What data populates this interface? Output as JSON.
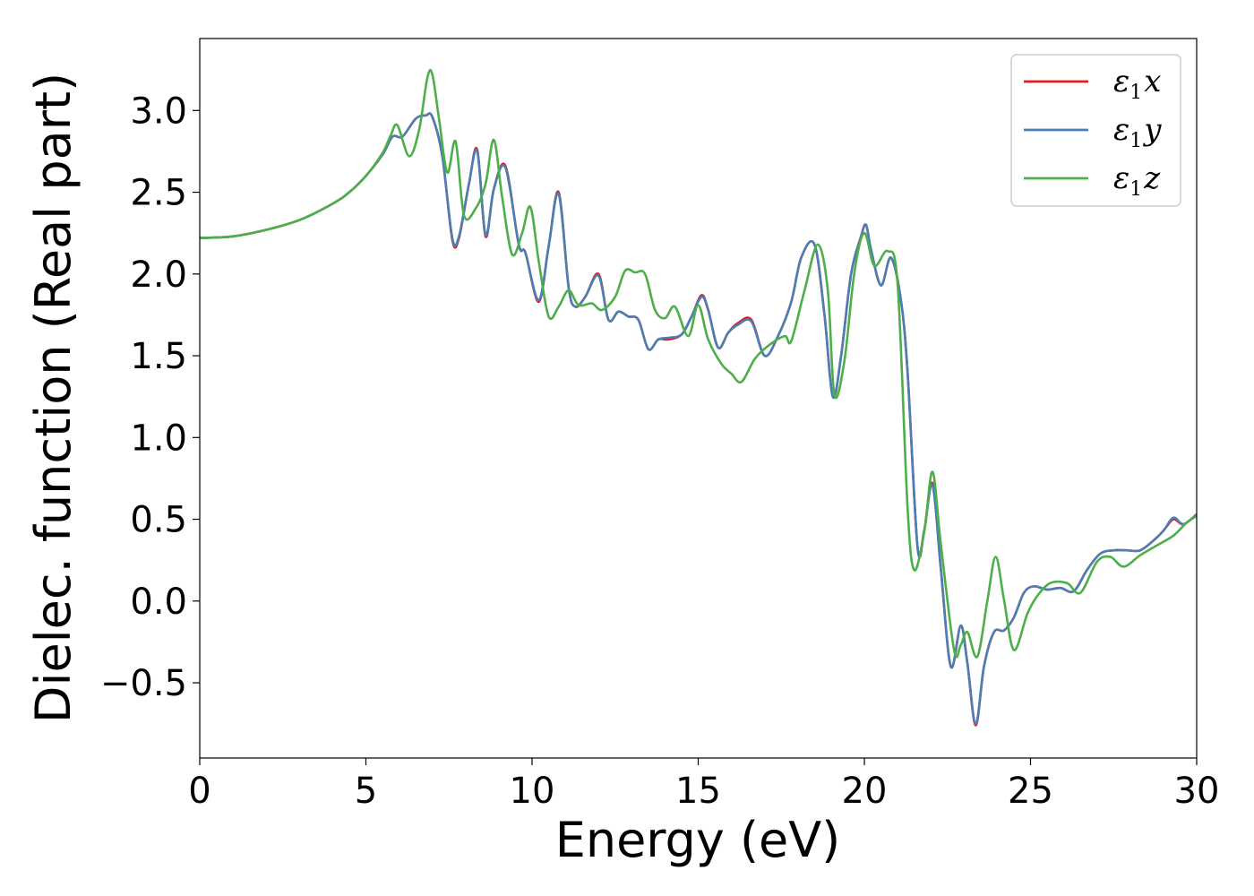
{
  "chart_data": {
    "type": "line",
    "title": "",
    "xlabel": "Energy (eV)",
    "ylabel": "Dielec. function (Real part)",
    "xlim": [
      0,
      30
    ],
    "ylim": [
      -0.96,
      3.44
    ],
    "xticks": [
      0,
      5,
      10,
      15,
      20,
      25,
      30
    ],
    "xtick_labels": [
      "0",
      "5",
      "10",
      "15",
      "20",
      "25",
      "30"
    ],
    "yticks": [
      -0.5,
      0.0,
      0.5,
      1.0,
      1.5,
      2.0,
      2.5,
      3.0
    ],
    "ytick_labels": [
      "−0.5",
      "0.0",
      "0.5",
      "1.0",
      "1.5",
      "2.0",
      "2.5",
      "3.0"
    ],
    "grid": false,
    "legend_position": "top-right",
    "series": [
      {
        "name": "ε1x",
        "legend_base": "ε",
        "legend_sub": "1",
        "legend_var": "x",
        "color": "#e41a1c",
        "x": [
          0,
          1,
          2,
          3,
          4,
          4.5,
          5,
          5.5,
          5.8,
          6.1,
          6.5,
          6.8,
          7.0,
          7.3,
          7.6,
          7.8,
          8.1,
          8.35,
          8.6,
          8.85,
          9.2,
          9.6,
          9.8,
          10.2,
          10.5,
          10.8,
          11.1,
          11.3,
          11.6,
          12.0,
          12.3,
          12.6,
          12.9,
          13.2,
          13.5,
          13.8,
          14.1,
          14.5,
          14.8,
          15.1,
          15.3,
          15.6,
          15.9,
          16.2,
          16.6,
          17.0,
          17.4,
          17.8,
          18.1,
          18.5,
          18.8,
          19.05,
          19.3,
          19.6,
          19.9,
          20.05,
          20.2,
          20.5,
          20.8,
          21.1,
          21.3,
          21.6,
          21.8,
          22.05,
          22.3,
          22.6,
          22.9,
          23.1,
          23.35,
          23.6,
          23.9,
          24.2,
          24.5,
          24.8,
          25.1,
          25.5,
          25.9,
          26.3,
          26.7,
          27.1,
          27.5,
          27.9,
          28.3,
          28.7,
          29.0,
          29.3,
          29.6,
          30.0
        ],
        "y": [
          2.22,
          2.23,
          2.27,
          2.33,
          2.43,
          2.5,
          2.6,
          2.73,
          2.84,
          2.84,
          2.95,
          2.97,
          2.96,
          2.72,
          2.21,
          2.22,
          2.55,
          2.76,
          2.23,
          2.52,
          2.66,
          2.18,
          2.13,
          1.83,
          2.17,
          2.5,
          1.92,
          1.8,
          1.86,
          2.0,
          1.72,
          1.77,
          1.74,
          1.72,
          1.54,
          1.6,
          1.6,
          1.63,
          1.74,
          1.87,
          1.78,
          1.55,
          1.64,
          1.7,
          1.72,
          1.5,
          1.62,
          1.83,
          2.1,
          2.18,
          1.75,
          1.25,
          1.5,
          2.0,
          2.23,
          2.3,
          2.15,
          1.93,
          2.1,
          1.84,
          1.4,
          0.33,
          0.43,
          0.72,
          0.2,
          -0.4,
          -0.15,
          -0.38,
          -0.76,
          -0.4,
          -0.19,
          -0.18,
          -0.1,
          0.05,
          0.09,
          0.07,
          0.08,
          0.06,
          0.19,
          0.29,
          0.31,
          0.31,
          0.31,
          0.37,
          0.43,
          0.5,
          0.47,
          0.53
        ]
      },
      {
        "name": "ε1y",
        "legend_base": "ε",
        "legend_sub": "1",
        "legend_var": "y",
        "color": "#4a7fb5",
        "x": [
          0,
          1,
          2,
          3,
          4,
          4.5,
          5,
          5.5,
          5.8,
          6.1,
          6.5,
          6.8,
          7.0,
          7.3,
          7.6,
          7.8,
          8.1,
          8.35,
          8.6,
          8.85,
          9.2,
          9.6,
          9.8,
          10.2,
          10.5,
          10.8,
          11.1,
          11.3,
          11.6,
          12.0,
          12.3,
          12.6,
          12.9,
          13.2,
          13.5,
          13.8,
          14.1,
          14.5,
          14.8,
          15.1,
          15.3,
          15.6,
          15.9,
          16.2,
          16.6,
          17.0,
          17.4,
          17.8,
          18.1,
          18.5,
          18.8,
          19.05,
          19.3,
          19.6,
          19.9,
          20.05,
          20.2,
          20.5,
          20.8,
          21.1,
          21.3,
          21.6,
          21.8,
          22.05,
          22.3,
          22.6,
          22.9,
          23.1,
          23.35,
          23.6,
          23.9,
          24.2,
          24.5,
          24.8,
          25.1,
          25.5,
          25.9,
          26.3,
          26.7,
          27.1,
          27.5,
          27.9,
          28.3,
          28.7,
          29.0,
          29.3,
          29.6,
          30.0
        ],
        "y": [
          2.22,
          2.23,
          2.27,
          2.33,
          2.43,
          2.5,
          2.6,
          2.73,
          2.84,
          2.84,
          2.95,
          2.97,
          2.96,
          2.72,
          2.22,
          2.23,
          2.55,
          2.75,
          2.24,
          2.52,
          2.65,
          2.18,
          2.13,
          1.84,
          2.17,
          2.49,
          1.92,
          1.8,
          1.86,
          1.99,
          1.72,
          1.77,
          1.74,
          1.72,
          1.54,
          1.6,
          1.61,
          1.63,
          1.74,
          1.86,
          1.78,
          1.55,
          1.64,
          1.69,
          1.71,
          1.5,
          1.62,
          1.83,
          2.1,
          2.18,
          1.75,
          1.25,
          1.5,
          2.0,
          2.23,
          2.3,
          2.15,
          1.93,
          2.1,
          1.84,
          1.4,
          0.33,
          0.43,
          0.71,
          0.2,
          -0.4,
          -0.15,
          -0.38,
          -0.75,
          -0.4,
          -0.19,
          -0.18,
          -0.1,
          0.05,
          0.09,
          0.07,
          0.08,
          0.06,
          0.19,
          0.29,
          0.31,
          0.31,
          0.31,
          0.37,
          0.43,
          0.51,
          0.47,
          0.53
        ]
      },
      {
        "name": "ε1z",
        "legend_base": "ε",
        "legend_sub": "1",
        "legend_var": "z",
        "color": "#4daf4a",
        "x": [
          0,
          1,
          2,
          3,
          4,
          4.5,
          5,
          5.5,
          5.75,
          5.95,
          6.3,
          6.6,
          6.85,
          7.0,
          7.2,
          7.45,
          7.7,
          7.95,
          8.3,
          8.6,
          8.85,
          9.1,
          9.4,
          9.7,
          9.95,
          10.2,
          10.5,
          10.8,
          11.1,
          11.4,
          11.8,
          12.1,
          12.5,
          12.8,
          13.1,
          13.4,
          13.7,
          14.0,
          14.3,
          14.7,
          15.0,
          15.3,
          15.7,
          16.0,
          16.3,
          16.7,
          17.1,
          17.6,
          17.8,
          18.2,
          18.6,
          18.9,
          19.1,
          19.4,
          19.7,
          20.0,
          20.3,
          20.7,
          21.0,
          21.3,
          21.5,
          21.8,
          22.05,
          22.3,
          22.7,
          22.9,
          23.1,
          23.4,
          23.7,
          23.95,
          24.2,
          24.5,
          24.9,
          25.2,
          25.6,
          26.1,
          26.5,
          27.0,
          27.4,
          27.8,
          28.3,
          28.8,
          29.3,
          29.7,
          30.0
        ],
        "y": [
          2.22,
          2.23,
          2.27,
          2.33,
          2.43,
          2.5,
          2.6,
          2.74,
          2.85,
          2.91,
          2.72,
          2.88,
          3.2,
          3.22,
          2.95,
          2.62,
          2.81,
          2.36,
          2.4,
          2.55,
          2.82,
          2.47,
          2.12,
          2.25,
          2.41,
          2.08,
          1.74,
          1.8,
          1.9,
          1.81,
          1.82,
          1.78,
          1.86,
          2.02,
          2.01,
          2.0,
          1.78,
          1.73,
          1.8,
          1.62,
          1.81,
          1.6,
          1.45,
          1.39,
          1.34,
          1.48,
          1.56,
          1.62,
          1.59,
          1.9,
          2.18,
          1.9,
          1.26,
          1.47,
          2.01,
          2.25,
          2.05,
          2.14,
          1.94,
          0.57,
          0.19,
          0.42,
          0.79,
          0.35,
          -0.3,
          -0.27,
          -0.19,
          -0.34,
          0.0,
          0.27,
          0.01,
          -0.3,
          -0.08,
          0.03,
          0.11,
          0.11,
          0.05,
          0.24,
          0.27,
          0.21,
          0.28,
          0.34,
          0.4,
          0.48,
          0.52
        ]
      }
    ]
  }
}
